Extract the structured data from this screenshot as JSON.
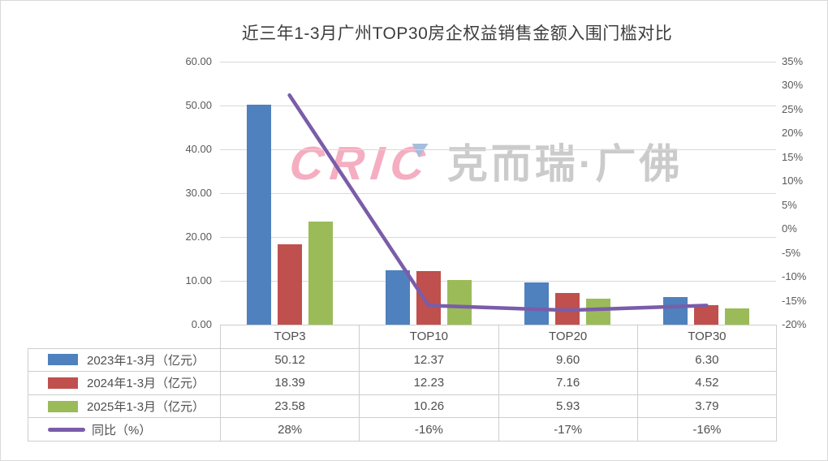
{
  "title": "近三年1-3月广州TOP30房企权益销售金额入围门槛对比",
  "watermark": {
    "logo": "CRIC",
    "text": "克而瑞·广佛"
  },
  "colors": {
    "bar_2023": "#4E81BD",
    "bar_2024": "#C0504D",
    "bar_2025": "#9BBB59",
    "line_yoy": "#7A5DA8",
    "gridline": "#D9D9D9",
    "axis_text": "#595959",
    "table_border": "#CFCDCD",
    "table_text": "#4F4F4F",
    "watermark_logo": "#F5AEC1",
    "watermark_text": "#CBCBCB",
    "watermark_triangle": "#A7BDDC"
  },
  "chart_data": {
    "type": "bar+line",
    "categories": [
      "TOP3",
      "TOP10",
      "TOP20",
      "TOP30"
    ],
    "series": [
      {
        "name": "2023年1-3月（亿元）",
        "kind": "bar",
        "color": "#4E81BD",
        "values": [
          50.12,
          12.37,
          9.6,
          6.3
        ]
      },
      {
        "name": "2024年1-3月（亿元）",
        "kind": "bar",
        "color": "#C0504D",
        "values": [
          18.39,
          12.23,
          7.16,
          4.52
        ]
      },
      {
        "name": "2025年1-3月（亿元）",
        "kind": "bar",
        "color": "#9BBB59",
        "values": [
          23.58,
          10.26,
          5.93,
          3.79
        ]
      },
      {
        "name": "同比（%）",
        "kind": "line",
        "color": "#7A5DA8",
        "values": [
          28,
          -16,
          -17,
          -16
        ]
      }
    ],
    "left_axis": {
      "min": 0,
      "max": 60,
      "step": 10,
      "tick_labels": [
        "0.00",
        "10.00",
        "20.00",
        "30.00",
        "40.00",
        "50.00",
        "60.00"
      ]
    },
    "right_axis": {
      "min": -20,
      "max": 35,
      "step": 5,
      "tick_labels": [
        "35%",
        "30%",
        "25%",
        "20%",
        "15%",
        "10%",
        "5%",
        "0%",
        "-5%",
        "-10%",
        "-15%",
        "-20%"
      ]
    },
    "grid": "horizontal major gridlines from left axis",
    "legend_position": "table rows, left of data table"
  },
  "table": {
    "columns": [
      "TOP3",
      "TOP10",
      "TOP20",
      "TOP30"
    ],
    "rows": [
      {
        "label": "2023年1-3月（亿元）",
        "swatch": "bar",
        "color": "#4E81BD",
        "values": [
          "50.12",
          "12.37",
          "9.60",
          "6.30"
        ]
      },
      {
        "label": "2024年1-3月（亿元）",
        "swatch": "bar",
        "color": "#C0504D",
        "values": [
          "18.39",
          "12.23",
          "7.16",
          "4.52"
        ]
      },
      {
        "label": "2025年1-3月（亿元）",
        "swatch": "bar",
        "color": "#9BBB59",
        "values": [
          "23.58",
          "10.26",
          "5.93",
          "3.79"
        ]
      },
      {
        "label": "同比（%）",
        "swatch": "line",
        "color": "#7A5DA8",
        "values": [
          "28%",
          "-16%",
          "-17%",
          "-16%"
        ]
      }
    ]
  }
}
